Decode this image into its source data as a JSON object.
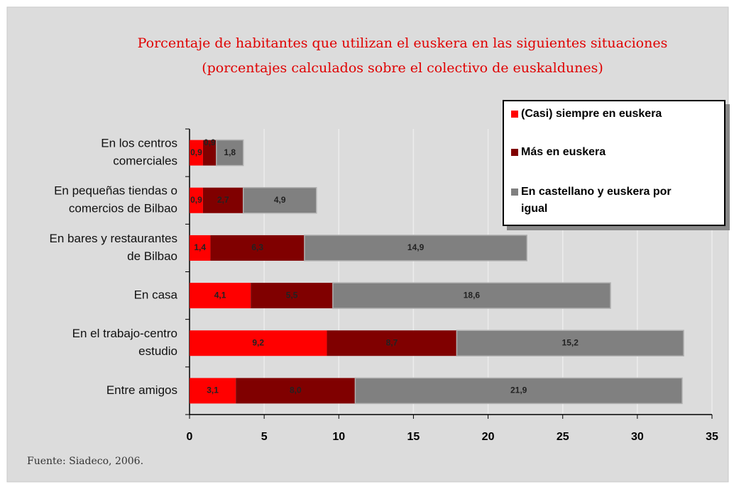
{
  "chart_data": {
    "type": "stacked_bar_horizontal",
    "title": [
      "Porcentaje de habitantes que utilizan el euskera en las siguientes situaciones",
      "(porcentajes calculados sobre el colectivo de euskaldunes)"
    ],
    "categories": [
      [
        "En los centros",
        "comerciales"
      ],
      [
        "En pequeñas tiendas o",
        "comercios de Bilbao"
      ],
      [
        "En bares y restaurantes",
        "de Bilbao"
      ],
      [
        "En casa"
      ],
      [
        "En el trabajo-centro",
        "estudio"
      ],
      [
        "Entre amigos"
      ]
    ],
    "series": [
      {
        "name": "(Casi) siempre en euskera",
        "color": "#ff0000",
        "values": [
          0.9,
          0.9,
          1.4,
          4.1,
          9.2,
          3.1
        ],
        "value_labels": [
          "0,9",
          "0,9",
          "1,4",
          "4,1",
          "9,2",
          "3,1"
        ]
      },
      {
        "name": "Más en euskera",
        "color": "#800000",
        "values": [
          0.9,
          2.7,
          6.3,
          5.5,
          8.7,
          8.0
        ],
        "value_labels": [
          "0,9",
          "2,7",
          "6,3",
          "5,5",
          "8,7",
          "8,0"
        ]
      },
      {
        "name": "En castellano y euskera por igual",
        "color": "#808080",
        "values": [
          1.8,
          4.9,
          14.9,
          18.6,
          15.2,
          21.9
        ],
        "value_labels": [
          "1,8",
          "4,9",
          "14,9",
          "18,6",
          "15,2",
          "21,9"
        ]
      }
    ],
    "xlim": [
      0,
      35
    ],
    "xticks": [
      0,
      5,
      10,
      15,
      20,
      25,
      30,
      35
    ],
    "grid": true,
    "legend": "top-right",
    "source": "Fuente: Siadeco, 2006."
  }
}
